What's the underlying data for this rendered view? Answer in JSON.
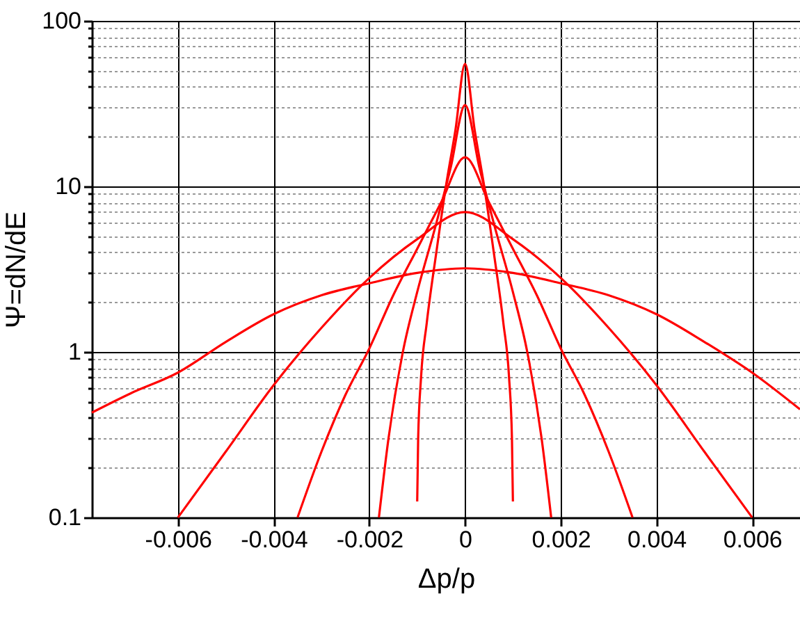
{
  "chart_data": {
    "type": "line",
    "xlabel": "Δp/p",
    "ylabel": "Ψ=dN/dE",
    "log": "y",
    "grid": true,
    "line_style": "solid",
    "marker": "none",
    "xlim": [
      -0.0078,
      0.007
    ],
    "xticks": [
      -0.006,
      -0.004,
      -0.002,
      0,
      0.002,
      0.004,
      0.006
    ],
    "ylim": [
      0.1,
      100
    ],
    "yticks": [
      0.1,
      {
        "value": 0.2,
        "label": null
      },
      {
        "value": 0.3,
        "label": null
      },
      {
        "value": 0.4,
        "label": null
      },
      {
        "value": 0.5,
        "label": null
      },
      {
        "value": 0.6,
        "label": null
      },
      {
        "value": 0.7,
        "label": null
      },
      {
        "value": 0.8,
        "label": null
      },
      {
        "value": 0.9,
        "label": null
      },
      1,
      {
        "value": 2,
        "label": null
      },
      {
        "value": 3,
        "label": null
      },
      {
        "value": 4,
        "label": null
      },
      {
        "value": 5,
        "label": null
      },
      {
        "value": 6,
        "label": null
      },
      {
        "value": 7,
        "label": null
      },
      {
        "value": 8,
        "label": null
      },
      {
        "value": 9,
        "label": null
      },
      10,
      {
        "value": 20,
        "label": null
      },
      {
        "value": 30,
        "label": null
      },
      {
        "value": 40,
        "label": null
      },
      {
        "value": 50,
        "label": null
      },
      {
        "value": 60,
        "label": null
      },
      {
        "value": 70,
        "label": null
      },
      {
        "value": 80,
        "label": null
      },
      {
        "value": 90,
        "label": null
      },
      100
    ],
    "series": [
      {
        "color": "#ff0000",
        "x": [
          -0.001,
          -0.00098,
          -0.00092,
          -0.0008,
          -0.0006,
          -0.0004,
          -0.0002,
          0,
          0.0002,
          0.0004,
          0.0006,
          0.0008,
          0.00092,
          0.00098,
          0.001
        ],
        "values": [
          0.125,
          0.3,
          0.7,
          1.5,
          4,
          10,
          22,
          55,
          22,
          10,
          4,
          1.5,
          0.7,
          0.3,
          0.125
        ]
      },
      {
        "color": "#ff0000",
        "x": [
          -0.0018,
          -0.0016,
          -0.0013,
          -0.001,
          -0.0006,
          -0.0003,
          0,
          0.0003,
          0.0006,
          0.001,
          0.0013,
          0.0016,
          0.0018
        ],
        "values": [
          0.1,
          0.3,
          1,
          2.3,
          6,
          13,
          31,
          13,
          6,
          2.3,
          1,
          0.3,
          0.1
        ]
      },
      {
        "color": "#ff0000",
        "x": [
          -0.0035,
          -0.003,
          -0.0025,
          -0.002,
          -0.0015,
          -0.001,
          -0.0005,
          0,
          0.0005,
          0.001,
          0.0015,
          0.002,
          0.0025,
          0.003,
          0.0035
        ],
        "values": [
          0.1,
          0.25,
          0.55,
          1.05,
          2.2,
          4.2,
          8,
          15,
          8,
          4.2,
          2.2,
          1.05,
          0.55,
          0.25,
          0.1
        ]
      },
      {
        "color": "#ff0000",
        "x": [
          -0.006,
          -0.005,
          -0.004,
          -0.003,
          -0.002,
          -0.001,
          0,
          0.001,
          0.002,
          0.003,
          0.004,
          0.005,
          0.006
        ],
        "values": [
          0.1,
          0.25,
          0.63,
          1.4,
          2.8,
          4.8,
          7,
          4.8,
          2.8,
          1.4,
          0.63,
          0.25,
          0.1
        ]
      },
      {
        "color": "#ff0000",
        "x": [
          -0.0078,
          -0.007,
          -0.006,
          -0.005,
          -0.004,
          -0.003,
          -0.002,
          -0.001,
          0,
          0.001,
          0.002,
          0.003,
          0.004,
          0.005,
          0.006,
          0.007
        ],
        "values": [
          0.43,
          0.56,
          0.75,
          1.15,
          1.69,
          2.2,
          2.6,
          3.0,
          3.2,
          3.0,
          2.6,
          2.2,
          1.69,
          1.15,
          0.75,
          0.45
        ]
      }
    ]
  }
}
